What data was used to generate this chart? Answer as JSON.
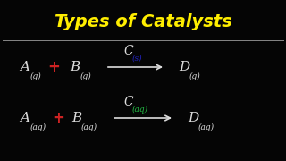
{
  "title": "Types of Catalysts",
  "title_color": "#FFEE00",
  "title_fontsize": 14,
  "bg_color": "#050505",
  "line_color": "#888888",
  "white": "#DDDDDD",
  "red": "#CC2222",
  "blue": "#2222BB",
  "green": "#22BB44",
  "row1": {
    "A_sub": "(g)",
    "B_sub": "(g)",
    "C_sub": "(s)",
    "D_sub": "(g)"
  },
  "row2": {
    "A_sub": "(aq)",
    "B_sub": "(aq)",
    "C_sub": "(aq)",
    "D_sub": "(aq)"
  }
}
